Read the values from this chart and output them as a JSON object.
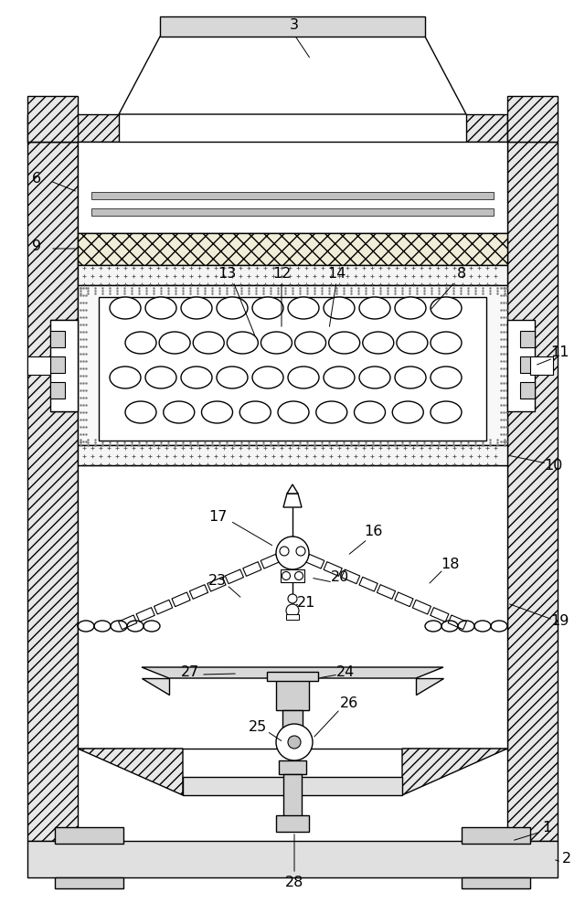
{
  "fig_width": 6.4,
  "fig_height": 10.0,
  "dpi": 100,
  "bg_color": "#ffffff"
}
